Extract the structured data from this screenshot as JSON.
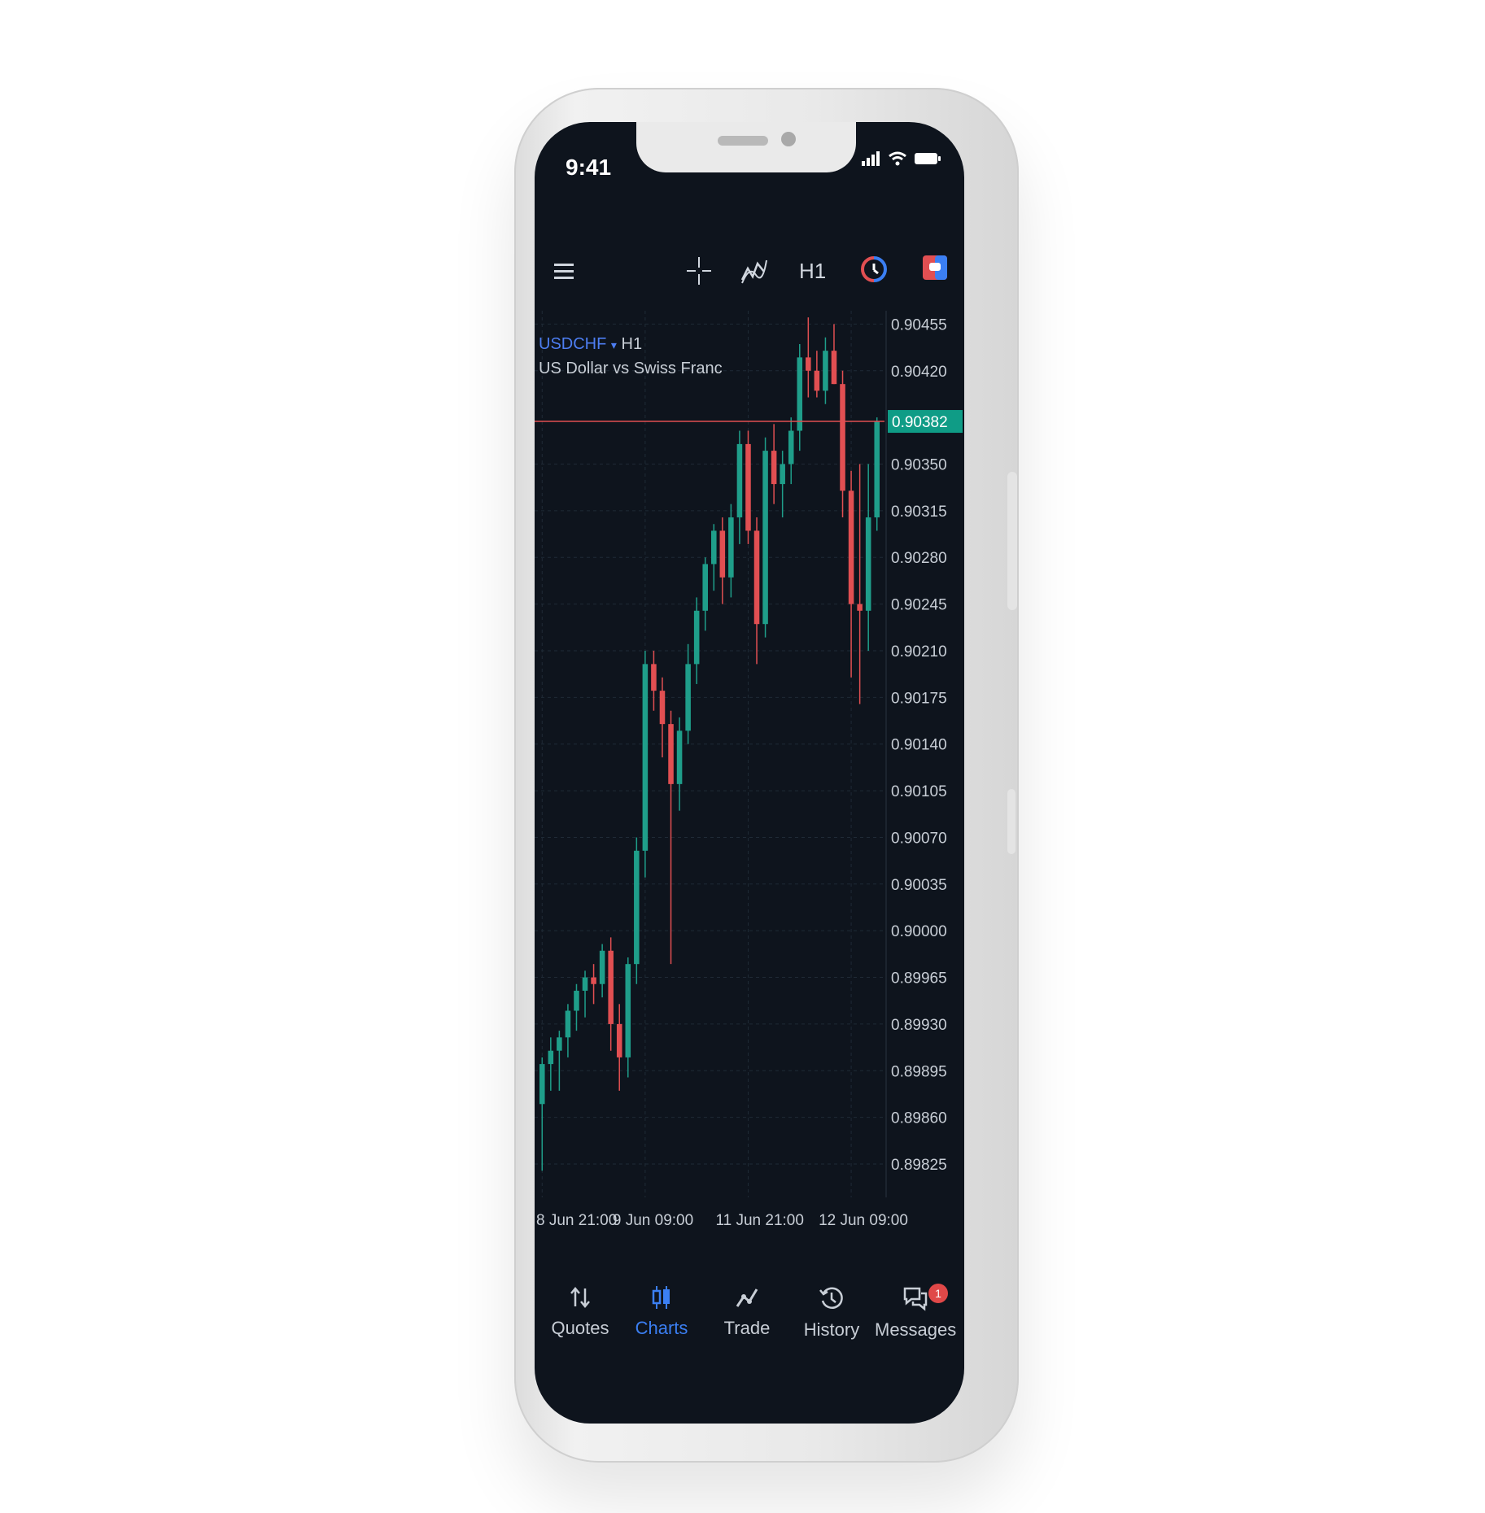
{
  "status_bar": {
    "time": "9:41"
  },
  "toolbar": {
    "menu_icon": "menu-icon",
    "crosshair_icon": "crosshair-icon",
    "indicators_icon": "indicators-icon",
    "timeframe": "H1",
    "one_click_icon": "one-click-trading-icon",
    "objects_icon": "chart-objects-icon"
  },
  "chart_header": {
    "symbol": "USDCHF",
    "dropdown": "▾",
    "timeframe": "H1",
    "description": "US Dollar vs Swiss Franc"
  },
  "chart_data": {
    "type": "candlestick",
    "symbol": "USDCHF",
    "timeframe": "H1",
    "ylim": [
      0.898,
      0.90465
    ],
    "y_ticks": [
      "0.90455",
      "0.90420",
      "0.90350",
      "0.90315",
      "0.90280",
      "0.90245",
      "0.90210",
      "0.90175",
      "0.90140",
      "0.90105",
      "0.90070",
      "0.90035",
      "0.90000",
      "0.89965",
      "0.89930",
      "0.89895",
      "0.89860",
      "0.89825"
    ],
    "x_ticks": [
      {
        "label": "8 Jun 21:00",
        "index": 0
      },
      {
        "label": "9 Jun 09:00",
        "index": 12
      },
      {
        "label": "11 Jun 21:00",
        "index": 24
      },
      {
        "label": "12 Jun 09:00",
        "index": 36
      }
    ],
    "current_price": "0.90382",
    "grid": true,
    "colors": {
      "bull": "#1f9e8a",
      "bear": "#e14f52",
      "price_line": "#e14f52",
      "price_label_bg": "#0f9c86"
    },
    "candles": [
      {
        "o": 0.8987,
        "h": 0.89905,
        "l": 0.8982,
        "c": 0.899
      },
      {
        "o": 0.899,
        "h": 0.8992,
        "l": 0.8988,
        "c": 0.8991
      },
      {
        "o": 0.8991,
        "h": 0.89925,
        "l": 0.8988,
        "c": 0.8992
      },
      {
        "o": 0.8992,
        "h": 0.89945,
        "l": 0.89905,
        "c": 0.8994
      },
      {
        "o": 0.8994,
        "h": 0.8996,
        "l": 0.89925,
        "c": 0.89955
      },
      {
        "o": 0.89955,
        "h": 0.8997,
        "l": 0.89935,
        "c": 0.89965
      },
      {
        "o": 0.89965,
        "h": 0.89975,
        "l": 0.89945,
        "c": 0.8996
      },
      {
        "o": 0.8996,
        "h": 0.8999,
        "l": 0.8995,
        "c": 0.89985
      },
      {
        "o": 0.89985,
        "h": 0.89995,
        "l": 0.8991,
        "c": 0.8993
      },
      {
        "o": 0.8993,
        "h": 0.89945,
        "l": 0.8988,
        "c": 0.89905
      },
      {
        "o": 0.89905,
        "h": 0.8998,
        "l": 0.8989,
        "c": 0.89975
      },
      {
        "o": 0.89975,
        "h": 0.9007,
        "l": 0.8996,
        "c": 0.9006
      },
      {
        "o": 0.9006,
        "h": 0.9021,
        "l": 0.9004,
        "c": 0.902
      },
      {
        "o": 0.902,
        "h": 0.9021,
        "l": 0.90165,
        "c": 0.9018
      },
      {
        "o": 0.9018,
        "h": 0.9019,
        "l": 0.9013,
        "c": 0.90155
      },
      {
        "o": 0.90155,
        "h": 0.90165,
        "l": 0.89975,
        "c": 0.9011
      },
      {
        "o": 0.9011,
        "h": 0.9016,
        "l": 0.9009,
        "c": 0.9015
      },
      {
        "o": 0.9015,
        "h": 0.90215,
        "l": 0.9014,
        "c": 0.902
      },
      {
        "o": 0.902,
        "h": 0.9025,
        "l": 0.90185,
        "c": 0.9024
      },
      {
        "o": 0.9024,
        "h": 0.9028,
        "l": 0.90225,
        "c": 0.90275
      },
      {
        "o": 0.90275,
        "h": 0.90305,
        "l": 0.90255,
        "c": 0.903
      },
      {
        "o": 0.903,
        "h": 0.9031,
        "l": 0.90245,
        "c": 0.90265
      },
      {
        "o": 0.90265,
        "h": 0.9032,
        "l": 0.9025,
        "c": 0.9031
      },
      {
        "o": 0.9031,
        "h": 0.90375,
        "l": 0.9029,
        "c": 0.90365
      },
      {
        "o": 0.90365,
        "h": 0.90375,
        "l": 0.9029,
        "c": 0.903
      },
      {
        "o": 0.903,
        "h": 0.9031,
        "l": 0.902,
        "c": 0.9023
      },
      {
        "o": 0.9023,
        "h": 0.9037,
        "l": 0.9022,
        "c": 0.9036
      },
      {
        "o": 0.9036,
        "h": 0.9038,
        "l": 0.9032,
        "c": 0.90335
      },
      {
        "o": 0.90335,
        "h": 0.9036,
        "l": 0.9031,
        "c": 0.9035
      },
      {
        "o": 0.9035,
        "h": 0.90385,
        "l": 0.90335,
        "c": 0.90375
      },
      {
        "o": 0.90375,
        "h": 0.9044,
        "l": 0.9036,
        "c": 0.9043
      },
      {
        "o": 0.9043,
        "h": 0.9046,
        "l": 0.904,
        "c": 0.9042
      },
      {
        "o": 0.9042,
        "h": 0.90435,
        "l": 0.904,
        "c": 0.90405
      },
      {
        "o": 0.90405,
        "h": 0.90445,
        "l": 0.90395,
        "c": 0.90435
      },
      {
        "o": 0.90435,
        "h": 0.90455,
        "l": 0.9041,
        "c": 0.9041
      },
      {
        "o": 0.9041,
        "h": 0.9042,
        "l": 0.9031,
        "c": 0.9033
      },
      {
        "o": 0.9033,
        "h": 0.90345,
        "l": 0.9019,
        "c": 0.90245
      },
      {
        "o": 0.90245,
        "h": 0.9035,
        "l": 0.9017,
        "c": 0.9024
      },
      {
        "o": 0.9024,
        "h": 0.9035,
        "l": 0.9021,
        "c": 0.9031
      },
      {
        "o": 0.9031,
        "h": 0.90385,
        "l": 0.903,
        "c": 0.90382
      }
    ]
  },
  "nav": {
    "quotes": "Quotes",
    "charts": "Charts",
    "trade": "Trade",
    "history": "History",
    "messages": "Messages",
    "messages_badge": "1"
  }
}
